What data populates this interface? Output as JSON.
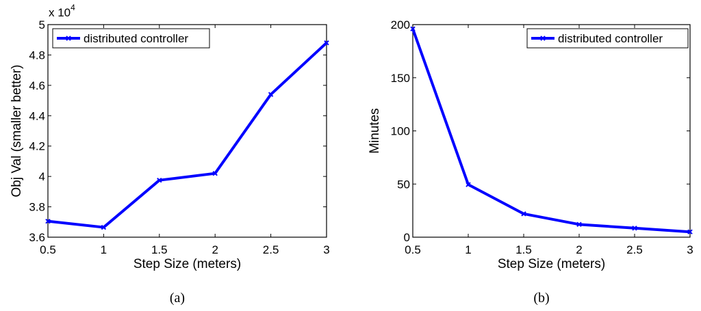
{
  "chart_data": [
    {
      "type": "line",
      "caption": "(a)",
      "xlabel": "Step Size (meters)",
      "ylabel": "Obj Val (smaller better)",
      "y_multiplier": "x 10",
      "y_multiplier_exp": "4",
      "xlim": [
        0.5,
        3
      ],
      "ylim": [
        3.6,
        5.0
      ],
      "xticks": [
        0.5,
        1,
        1.5,
        2,
        2.5,
        3
      ],
      "xtick_labels": [
        "0.5",
        "1",
        "1.5",
        "2",
        "2.5",
        "3"
      ],
      "yticks": [
        3.6,
        3.8,
        4.0,
        4.2,
        4.4,
        4.6,
        4.8,
        5.0
      ],
      "ytick_labels": [
        "3.6",
        "3.8",
        "4",
        "4.2",
        "4.4",
        "4.6",
        "4.8",
        "5"
      ],
      "legend_position": "top-left",
      "grid": false,
      "series": [
        {
          "name": "distributed controller",
          "color": "#0000ff",
          "x": [
            0.5,
            1,
            1.5,
            2,
            2.5,
            3
          ],
          "y": [
            3.705,
            3.665,
            3.975,
            4.02,
            4.54,
            4.88
          ]
        }
      ]
    },
    {
      "type": "line",
      "caption": "(b)",
      "xlabel": "Step Size (meters)",
      "ylabel": "Minutes",
      "xlim": [
        0.5,
        3
      ],
      "ylim": [
        0,
        200
      ],
      "xticks": [
        0.5,
        1,
        1.5,
        2,
        2.5,
        3
      ],
      "xtick_labels": [
        "0.5",
        "1",
        "1.5",
        "2",
        "2.5",
        "3"
      ],
      "yticks": [
        0,
        50,
        100,
        150,
        200
      ],
      "ytick_labels": [
        "0",
        "50",
        "100",
        "150",
        "200"
      ],
      "legend_position": "top-right",
      "grid": false,
      "series": [
        {
          "name": "distributed controller",
          "color": "#0000ff",
          "x": [
            0.5,
            1,
            1.5,
            2,
            2.5,
            3
          ],
          "y": [
            196,
            49.5,
            22,
            12,
            8.5,
            5
          ]
        }
      ]
    }
  ]
}
